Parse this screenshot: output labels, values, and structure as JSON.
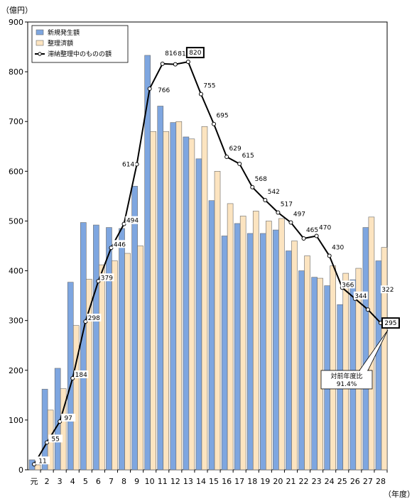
{
  "chart_data": {
    "type": "bar",
    "yunit": "（億円）",
    "xunit": "（年度）",
    "ylim": [
      0,
      900
    ],
    "yticks": [
      0,
      100,
      200,
      300,
      400,
      500,
      600,
      700,
      800,
      900
    ],
    "grid": false,
    "legend_position": "top-left",
    "categories": [
      "元",
      "2",
      "3",
      "4",
      "5",
      "6",
      "7",
      "8",
      "9",
      "10",
      "11",
      "12",
      "13",
      "14",
      "15",
      "16",
      "17",
      "18",
      "19",
      "20",
      "21",
      "22",
      "23",
      "24",
      "25",
      "26",
      "27",
      "28"
    ],
    "series": [
      {
        "name": "新規発生額",
        "kind": "bar",
        "color": "#7ea6e0",
        "values": [
          20,
          162,
          204,
          377,
          497,
          492,
          487,
          485,
          570,
          833,
          731,
          698,
          669,
          625,
          541,
          470,
          495,
          475,
          475,
          482,
          440,
          400,
          387,
          370,
          332,
          382,
          487,
          420
        ]
      },
      {
        "name": "整理済額",
        "kind": "bar",
        "color": "#fce4c0",
        "values": [
          10,
          120,
          163,
          290,
          383,
          412,
          420,
          435,
          450,
          680,
          680,
          700,
          665,
          690,
          600,
          535,
          510,
          520,
          500,
          505,
          460,
          430,
          385,
          410,
          395,
          405,
          508,
          447
        ]
      },
      {
        "name": "滞納整理中のものの額",
        "kind": "line",
        "color": "#000000",
        "values": [
          11,
          55,
          97,
          184,
          298,
          379,
          446,
          494,
          614,
          766,
          816,
          815,
          820,
          755,
          695,
          629,
          615,
          568,
          542,
          517,
          497,
          465,
          470,
          430,
          366,
          344,
          322,
          295
        ]
      }
    ],
    "annotation": {
      "lines": [
        "対前年度比",
        "91.4%"
      ]
    }
  }
}
